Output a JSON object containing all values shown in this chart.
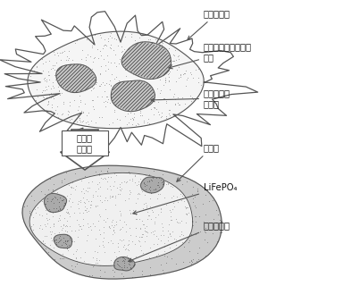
{
  "labels": {
    "organic_chain": "有机分子链",
    "mixture": "锂、铁、磷成分的混\n合物",
    "carbon_source": "碳源或其分\n解产物",
    "reaction": "碳热还\n原反应",
    "coating_carbon": "包覆碳",
    "lifepo4": "LiFePO₄",
    "residual_carbon": "反应残余碳"
  },
  "bg_color": "#ffffff",
  "outline_color": "#555555",
  "arrow_color": "#555555",
  "text_color": "#111111",
  "stipple_color": "#aaaaaa",
  "hatch_bg": "#d8d8d8",
  "coating_stipple": "#999999"
}
